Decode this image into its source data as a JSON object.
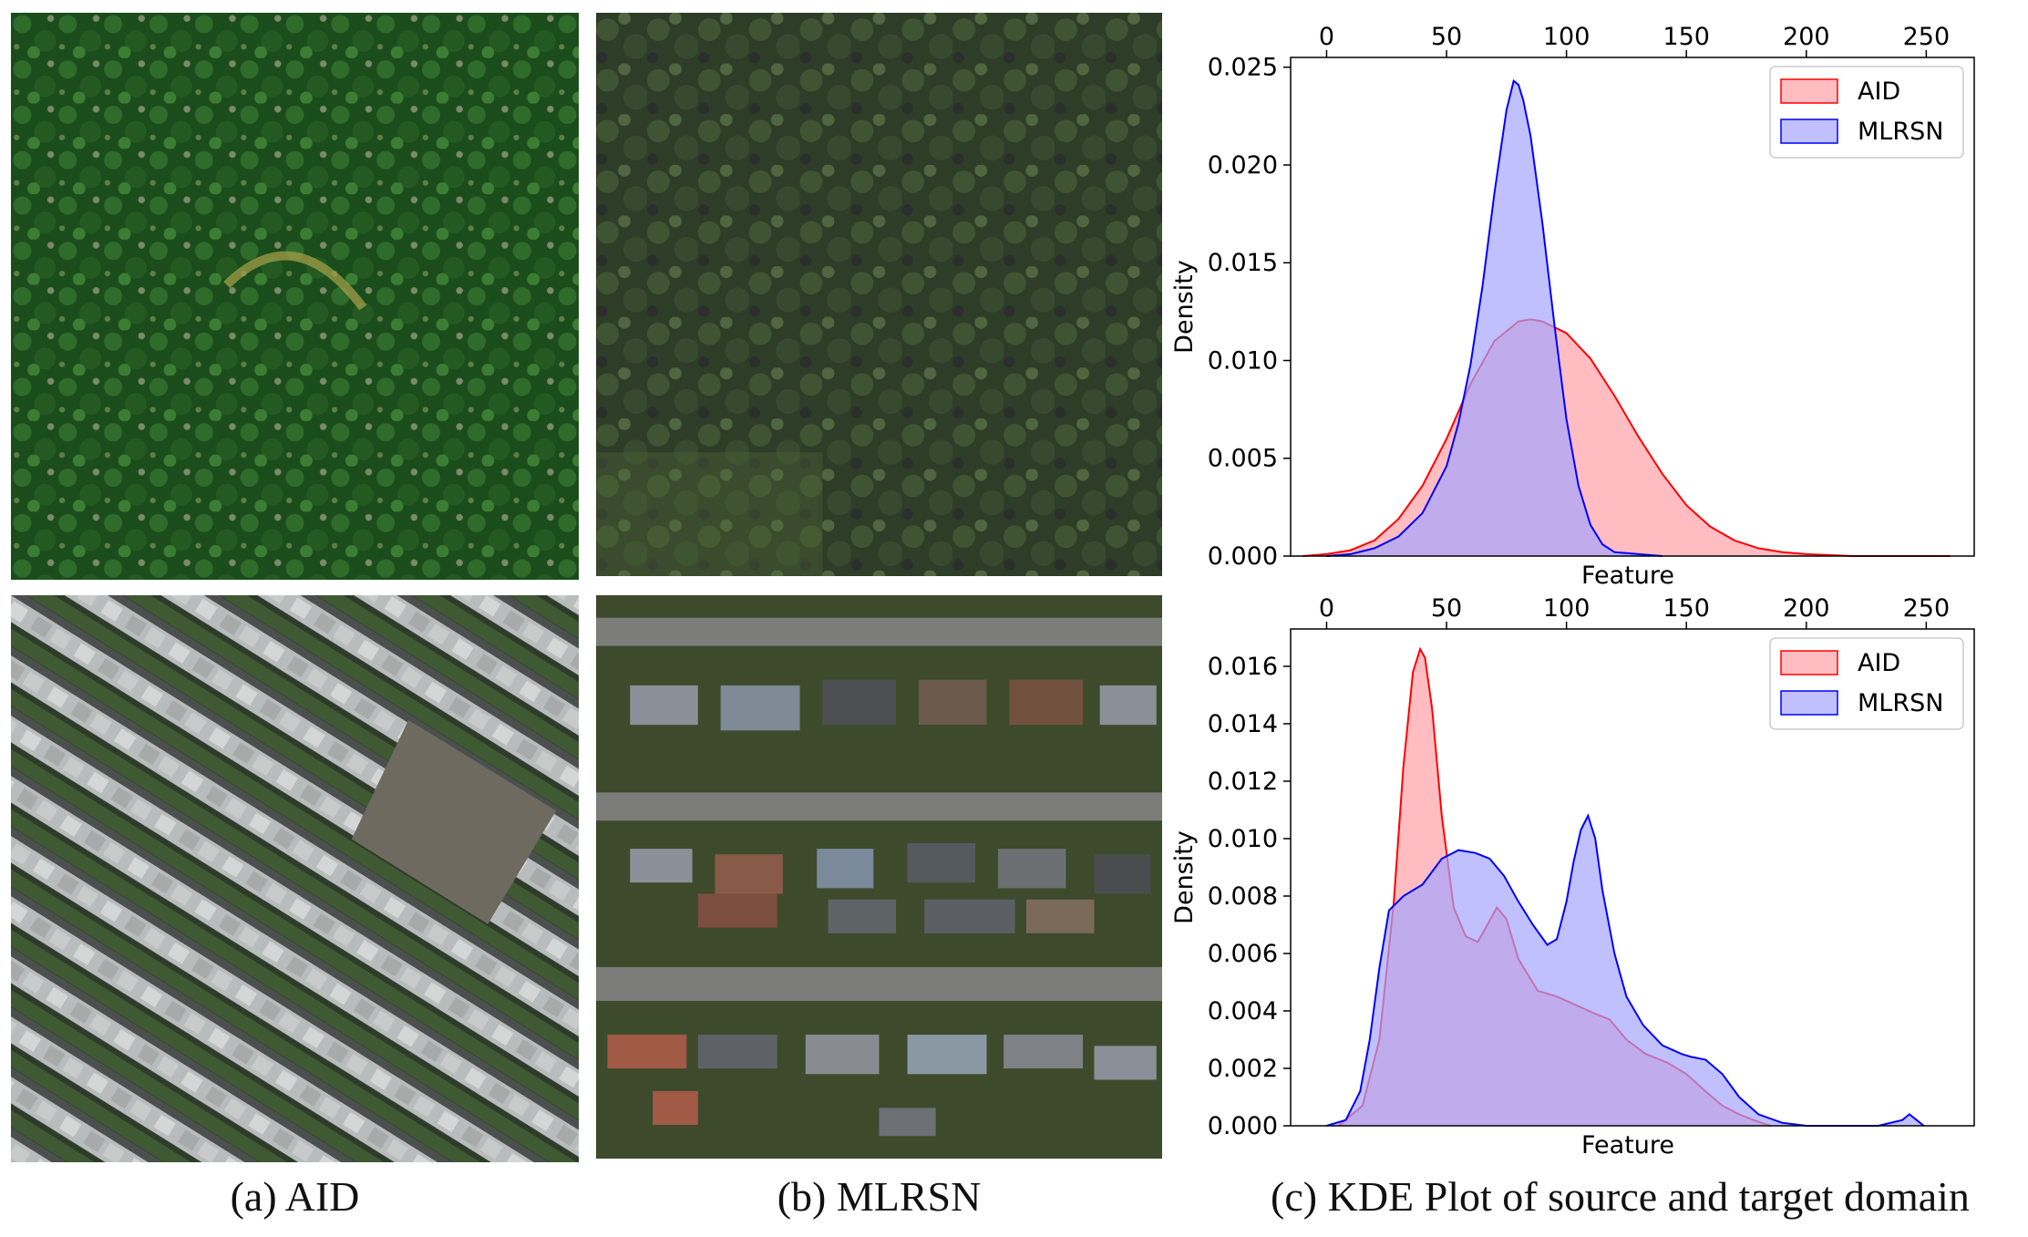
{
  "figure": {
    "captions": {
      "a": "(a) AID",
      "b": "(b) MLRSN",
      "c": "(c) KDE Plot of source and target domain"
    },
    "images": [
      {
        "id": "aid-forest",
        "subject": "dense forest canopy, aerial view"
      },
      {
        "id": "aid-urban",
        "subject": "dense urban blocks of rowhouses, aerial view"
      },
      {
        "id": "mlrsn-forest",
        "subject": "forest canopy, aerial view"
      },
      {
        "id": "mlrsn-urban",
        "subject": "suburban houses along streets, aerial view"
      }
    ]
  },
  "colors": {
    "aid_fill": "#ffa0a6",
    "aid_line": "#ff0000",
    "mlrsn_fill": "#a5a5ff",
    "mlrsn_line": "#0000ff"
  },
  "chart_data": [
    {
      "type": "area",
      "xlabel": "Feature",
      "ylabel": "Density",
      "xticks": [
        0,
        50,
        100,
        150,
        200,
        250
      ],
      "yticks": [
        "0.000",
        "0.005",
        "0.010",
        "0.015",
        "0.020",
        "0.025"
      ],
      "xlim": [
        -15,
        270
      ],
      "ylim": [
        0,
        0.0255
      ],
      "legend": "top-right",
      "grid": false,
      "series": [
        {
          "name": "AID",
          "x": [
            -10,
            0,
            10,
            20,
            30,
            40,
            50,
            60,
            70,
            80,
            85,
            90,
            100,
            110,
            120,
            130,
            140,
            150,
            160,
            170,
            180,
            190,
            200,
            220,
            240,
            260
          ],
          "y": [
            0,
            0.0001,
            0.0003,
            0.0008,
            0.0019,
            0.0036,
            0.006,
            0.0088,
            0.011,
            0.012,
            0.0121,
            0.012,
            0.0114,
            0.0101,
            0.0082,
            0.0061,
            0.0042,
            0.0026,
            0.0015,
            0.0008,
            0.0004,
            0.0002,
            0.0001,
            0,
            0,
            0
          ]
        },
        {
          "name": "MLRSN",
          "x": [
            0,
            10,
            20,
            30,
            40,
            50,
            55,
            60,
            65,
            70,
            75,
            78,
            80,
            82,
            85,
            90,
            95,
            100,
            105,
            110,
            115,
            120,
            130,
            140
          ],
          "y": [
            0,
            0.0001,
            0.0004,
            0.001,
            0.0022,
            0.0046,
            0.0068,
            0.0098,
            0.0138,
            0.0186,
            0.0228,
            0.0243,
            0.0241,
            0.0233,
            0.0215,
            0.017,
            0.0118,
            0.007,
            0.0036,
            0.0016,
            0.0006,
            0.0002,
            0.0001,
            0
          ]
        }
      ]
    },
    {
      "type": "area",
      "xlabel": "Feature",
      "ylabel": "Density",
      "xticks": [
        0,
        50,
        100,
        150,
        200,
        250
      ],
      "yticks": [
        "0.000",
        "0.002",
        "0.004",
        "0.006",
        "0.008",
        "0.010",
        "0.012",
        "0.014",
        "0.016"
      ],
      "xlim": [
        -15,
        270
      ],
      "ylim": [
        0,
        0.0173
      ],
      "legend": "top-right",
      "grid": false,
      "series": [
        {
          "name": "AID",
          "x": [
            5,
            15,
            22,
            28,
            32,
            36,
            39,
            41,
            44,
            48,
            53,
            58,
            63,
            67,
            71,
            75,
            80,
            88,
            96,
            104,
            112,
            118,
            125,
            133,
            142,
            150,
            158,
            165,
            172,
            178,
            185
          ],
          "y": [
            0,
            0.0007,
            0.003,
            0.0078,
            0.0125,
            0.0158,
            0.0166,
            0.0163,
            0.0145,
            0.0108,
            0.0076,
            0.0066,
            0.0064,
            0.007,
            0.0076,
            0.0072,
            0.0058,
            0.0047,
            0.0045,
            0.0042,
            0.0039,
            0.0037,
            0.003,
            0.0025,
            0.0022,
            0.0018,
            0.0012,
            0.0007,
            0.0004,
            0.0002,
            0
          ]
        },
        {
          "name": "MLRSN",
          "x": [
            0,
            8,
            14,
            18,
            22,
            26,
            32,
            40,
            48,
            55,
            62,
            68,
            74,
            80,
            86,
            92,
            96,
            100,
            103,
            106,
            109,
            112,
            115,
            120,
            125,
            132,
            140,
            148,
            152,
            158,
            165,
            172,
            180,
            190,
            200,
            230,
            240,
            243,
            246,
            249
          ],
          "y": [
            0,
            0.0002,
            0.0012,
            0.003,
            0.0055,
            0.0075,
            0.008,
            0.0084,
            0.0093,
            0.0096,
            0.0095,
            0.0093,
            0.0087,
            0.0078,
            0.007,
            0.0063,
            0.0065,
            0.0078,
            0.0092,
            0.0103,
            0.0108,
            0.01,
            0.0082,
            0.006,
            0.0045,
            0.0035,
            0.0028,
            0.0025,
            0.0024,
            0.0023,
            0.0018,
            0.001,
            0.0004,
            0.0001,
            0,
            0,
            0.0002,
            0.0004,
            0.0002,
            0
          ]
        }
      ]
    }
  ]
}
